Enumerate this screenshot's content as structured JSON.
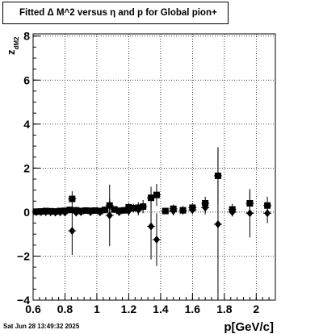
{
  "title": "Fitted Δ M^2 versus η and p for Global pion+",
  "timestamp": "Sat Jun 28 13:49:32 2025",
  "chart_data": {
    "type": "scatter",
    "xlabel": "p[GeV/c]",
    "ylabel_main": "z",
    "ylabel_sub": "dM2",
    "xlim": [
      0.6,
      2.12
    ],
    "ylim": [
      -4,
      8.1
    ],
    "x_ticks": [
      "0.6",
      "0.8",
      "1",
      "1.2",
      "1.4",
      "1.6",
      "1.8",
      "2"
    ],
    "y_ticks": [
      "−4",
      "−2",
      "0",
      "2",
      "4",
      "6",
      "8"
    ],
    "grid": true,
    "series": [
      {
        "marker": "square",
        "points": [
          {
            "x": 0.62,
            "y": 0.02,
            "err": 0.08
          },
          {
            "x": 0.65,
            "y": 0.03,
            "err": 0.08
          },
          {
            "x": 0.68,
            "y": 0.05,
            "err": 0.08
          },
          {
            "x": 0.71,
            "y": 0.04,
            "err": 0.08
          },
          {
            "x": 0.74,
            "y": 0.03,
            "err": 0.08
          },
          {
            "x": 0.77,
            "y": 0.05,
            "err": 0.08
          },
          {
            "x": 0.8,
            "y": 0.06,
            "err": 0.1
          },
          {
            "x": 0.83,
            "y": 0.1,
            "err": 0.15
          },
          {
            "x": 0.845,
            "y": 0.6,
            "err": 0.35
          },
          {
            "x": 0.87,
            "y": 0.08,
            "err": 0.15
          },
          {
            "x": 0.9,
            "y": 0.05,
            "err": 0.12
          },
          {
            "x": 0.93,
            "y": 0.07,
            "err": 0.12
          },
          {
            "x": 0.96,
            "y": 0.06,
            "err": 0.12
          },
          {
            "x": 0.99,
            "y": 0.07,
            "err": 0.12
          },
          {
            "x": 1.02,
            "y": 0.05,
            "err": 0.12
          },
          {
            "x": 1.05,
            "y": 0.1,
            "err": 0.15
          },
          {
            "x": 1.08,
            "y": 0.3,
            "err": 0.3
          },
          {
            "x": 1.11,
            "y": 0.12,
            "err": 0.15
          },
          {
            "x": 1.14,
            "y": 0.06,
            "err": 0.15
          },
          {
            "x": 1.17,
            "y": 0.08,
            "err": 0.15
          },
          {
            "x": 1.2,
            "y": 0.22,
            "err": 0.2
          },
          {
            "x": 1.23,
            "y": 0.18,
            "err": 0.2
          },
          {
            "x": 1.26,
            "y": 0.2,
            "err": 0.25
          },
          {
            "x": 1.29,
            "y": 0.25,
            "err": 0.3
          },
          {
            "x": 1.34,
            "y": 0.65,
            "err": 0.5
          },
          {
            "x": 1.375,
            "y": 0.78,
            "err": 0.5
          },
          {
            "x": 1.43,
            "y": 0.05,
            "err": 0.15
          },
          {
            "x": 1.48,
            "y": 0.15,
            "err": 0.2
          },
          {
            "x": 1.54,
            "y": 0.08,
            "err": 0.2
          },
          {
            "x": 1.6,
            "y": 0.2,
            "err": 0.2
          },
          {
            "x": 1.68,
            "y": 0.4,
            "err": 0.3
          },
          {
            "x": 1.76,
            "y": 1.65,
            "err": 1.3
          },
          {
            "x": 1.85,
            "y": 0.12,
            "err": 0.25
          },
          {
            "x": 1.96,
            "y": 0.4,
            "err": 0.6
          },
          {
            "x": 2.07,
            "y": 0.3,
            "err": 0.4
          }
        ]
      },
      {
        "marker": "diamond",
        "points": [
          {
            "x": 0.62,
            "y": 0.0,
            "err": 0.08
          },
          {
            "x": 0.65,
            "y": 0.0,
            "err": 0.08
          },
          {
            "x": 0.68,
            "y": 0.0,
            "err": 0.08
          },
          {
            "x": 0.71,
            "y": -0.01,
            "err": 0.08
          },
          {
            "x": 0.74,
            "y": -0.02,
            "err": 0.08
          },
          {
            "x": 0.77,
            "y": -0.01,
            "err": 0.08
          },
          {
            "x": 0.8,
            "y": -0.02,
            "err": 0.1
          },
          {
            "x": 0.845,
            "y": -0.85,
            "err": 1.1
          },
          {
            "x": 0.87,
            "y": -0.02,
            "err": 0.12
          },
          {
            "x": 0.9,
            "y": 0.0,
            "err": 0.12
          },
          {
            "x": 0.96,
            "y": 0.0,
            "err": 0.12
          },
          {
            "x": 1.02,
            "y": -0.01,
            "err": 0.12
          },
          {
            "x": 1.08,
            "y": -0.15,
            "err": 1.4
          },
          {
            "x": 1.14,
            "y": 0.0,
            "err": 0.15
          },
          {
            "x": 1.2,
            "y": 0.05,
            "err": 0.2
          },
          {
            "x": 1.26,
            "y": 0.1,
            "err": 0.25
          },
          {
            "x": 1.34,
            "y": -0.65,
            "err": 1.5
          },
          {
            "x": 1.375,
            "y": -1.25,
            "err": 1.2
          },
          {
            "x": 1.48,
            "y": 0.05,
            "err": 0.2
          },
          {
            "x": 1.6,
            "y": 0.1,
            "err": 0.2
          },
          {
            "x": 1.68,
            "y": 0.2,
            "err": 0.3
          },
          {
            "x": 1.76,
            "y": -0.55,
            "err": 3.5
          },
          {
            "x": 1.85,
            "y": 0.0,
            "err": 0.2
          },
          {
            "x": 1.96,
            "y": -0.05,
            "err": 1.1
          },
          {
            "x": 2.07,
            "y": -0.05,
            "err": 0.45
          }
        ]
      }
    ]
  }
}
